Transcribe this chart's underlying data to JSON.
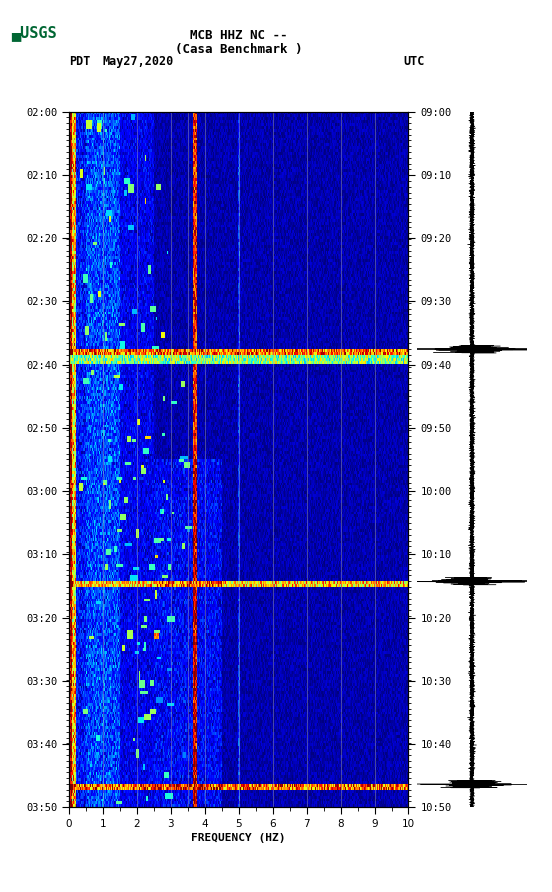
{
  "title_line1": "MCB HHZ NC --",
  "title_line2": "(Casa Benchmark )",
  "pdt_label": "PDT",
  "date_label": "May27,2020",
  "utc_label": "UTC",
  "freq_label": "FREQUENCY (HZ)",
  "freq_min": 0,
  "freq_max": 10,
  "left_time_ticks": [
    "02:00",
    "02:10",
    "02:20",
    "02:30",
    "02:40",
    "02:50",
    "03:00",
    "03:10",
    "03:20",
    "03:30",
    "03:40",
    "03:50"
  ],
  "right_time_ticks": [
    "09:00",
    "09:10",
    "09:20",
    "09:30",
    "09:40",
    "09:50",
    "10:00",
    "10:10",
    "10:20",
    "10:30",
    "10:40",
    "10:50"
  ],
  "freq_ticks": [
    0,
    1,
    2,
    3,
    4,
    5,
    6,
    7,
    8,
    9,
    10
  ],
  "bg_color": "#ffffff",
  "spectrogram_bg": "#000066",
  "colormap": "jet",
  "n_time": 240,
  "n_freq": 400,
  "vline_freqs": [
    1.0,
    2.0,
    3.0,
    3.5,
    4.0,
    5.0,
    6.0,
    7.0,
    8.0,
    9.0
  ],
  "vline_color": "#aaaaaa",
  "usgs_color": "#006633",
  "band1_row": 82,
  "band2_row": 162,
  "band3_row": 232
}
